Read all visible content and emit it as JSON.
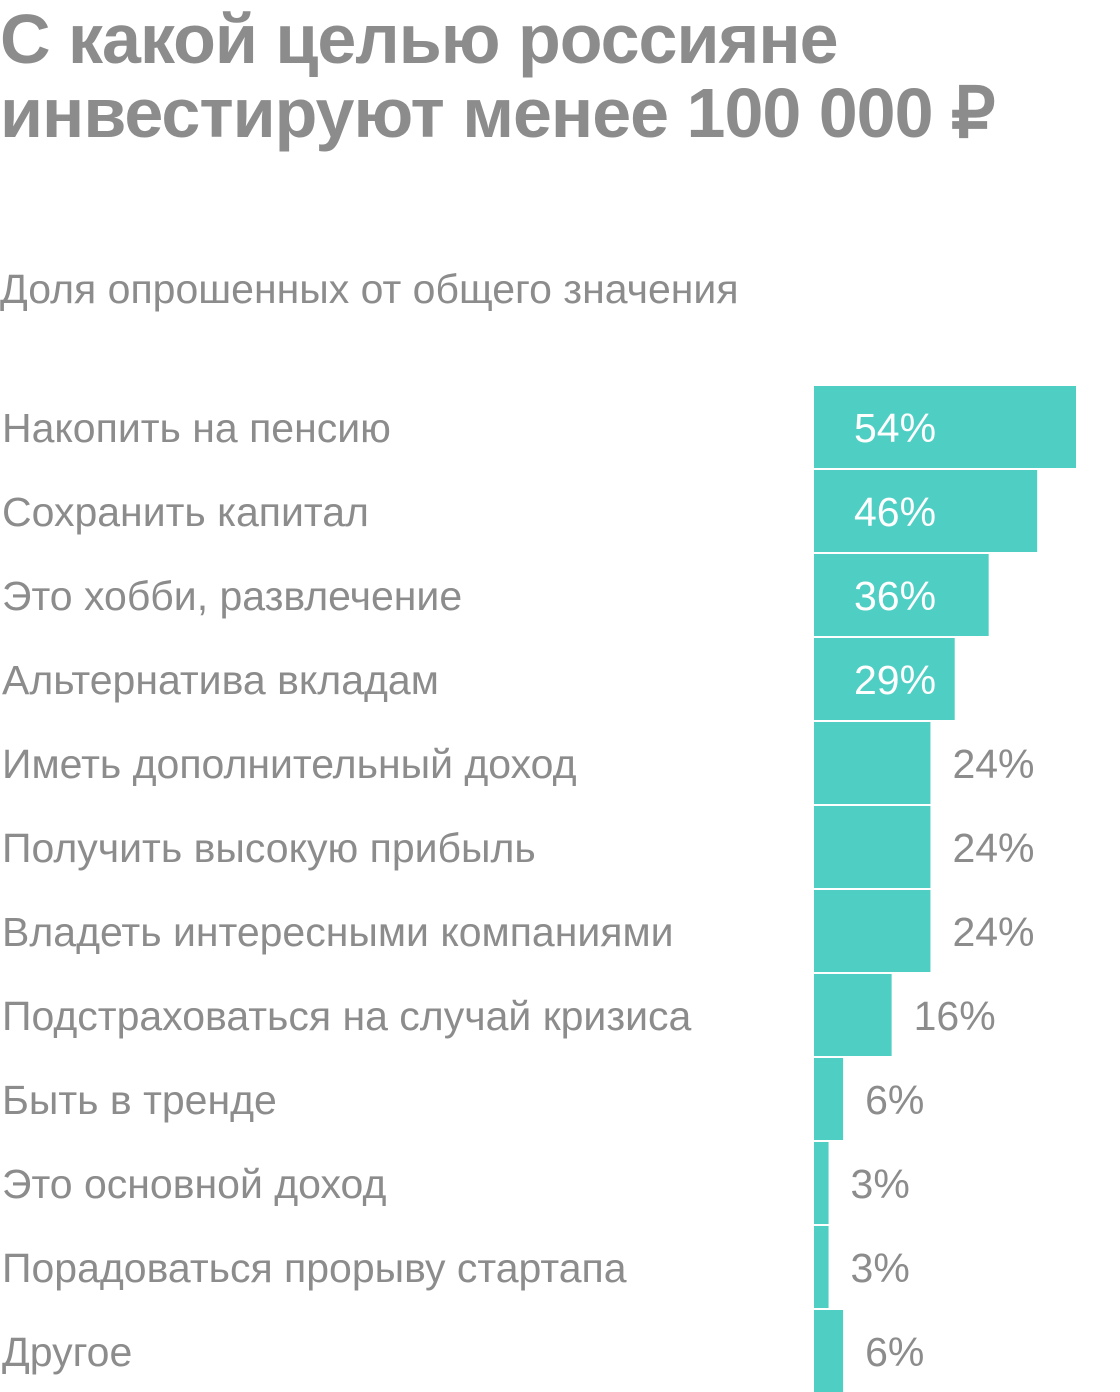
{
  "title": "С какой целью россияне инвестируют менее 100 000 ₽",
  "subtitle": "Доля опрошенных от общего значения",
  "colors": {
    "bar": "#4fcfc4",
    "text": "#8c8c8c",
    "label_inside": "#ffffff"
  },
  "chart_data": {
    "type": "bar",
    "orientation": "horizontal",
    "categories": [
      "Накопить на пенсию",
      "Сохранить капитал",
      "Это хобби, развлечение",
      "Альтернатива вкладам",
      "Иметь дополнительный доход",
      "Получить высокую прибыль",
      "Владеть интересными компаниями",
      "Подстраховаться на случай кризиса",
      "Быть в тренде",
      "Это основной доход",
      "Порадоваться прорыву стартапа",
      "Другое"
    ],
    "values": [
      54,
      46,
      36,
      29,
      24,
      24,
      24,
      16,
      6,
      3,
      3,
      6
    ],
    "value_labels": [
      "54%",
      "46%",
      "36%",
      "29%",
      "24%",
      "24%",
      "24%",
      "16%",
      "6%",
      "3%",
      "3%",
      "6%"
    ],
    "unit": "%",
    "xlim": [
      0,
      54
    ],
    "grid": false,
    "legend": "none"
  }
}
